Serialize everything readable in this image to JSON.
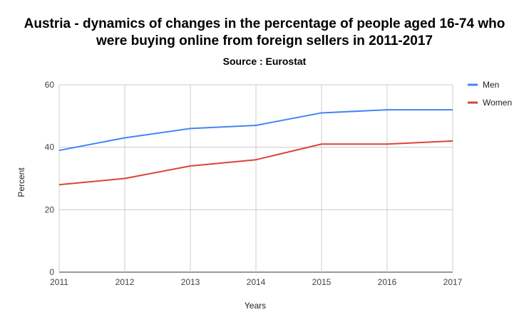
{
  "chart_data": {
    "type": "line",
    "title_line1": "Austria -  dynamics of changes in the percentage of people aged 16-74 who",
    "title_line2": "were buying online from foreign sellers in 2011-2017",
    "subtitle": "Source : Eurostat",
    "xlabel": "Years",
    "ylabel": "Percent",
    "categories": [
      "2011",
      "2012",
      "2013",
      "2014",
      "2015",
      "2016",
      "2017"
    ],
    "yticks": [
      "0",
      "20",
      "40",
      "60"
    ],
    "ylim": [
      0,
      60
    ],
    "grid": true,
    "legend_position": "right",
    "series": [
      {
        "name": "Men",
        "color": "#4285f4",
        "values": [
          39,
          43,
          46,
          47,
          51,
          52,
          52
        ]
      },
      {
        "name": "Women",
        "color": "#db4437",
        "values": [
          28,
          30,
          34,
          36,
          41,
          41,
          42
        ]
      }
    ]
  }
}
